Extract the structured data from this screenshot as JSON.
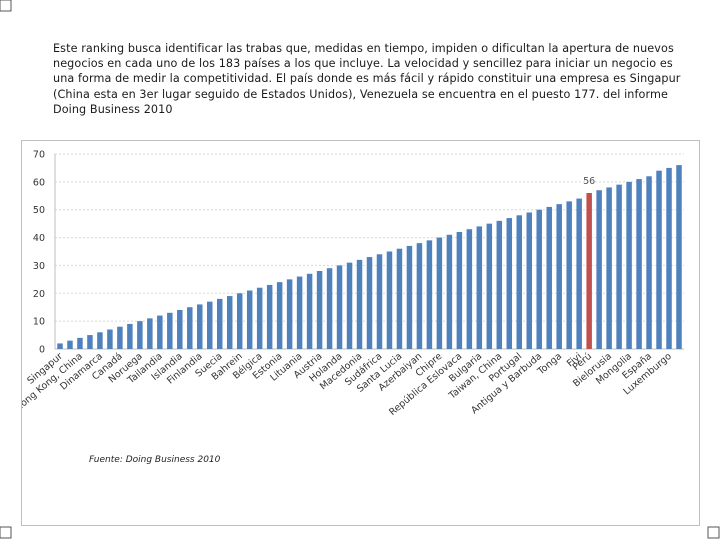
{
  "intro_text": "Este ranking busca identificar las trabas que, medidas en tiempo, impiden o dificultan la apertura de nuevos negocios en cada uno de los 183 países a los que incluye. La velocidad y sencillez para iniciar un negocio es una forma de medir la competitividad. El país donde es más fácil y rápido constituir una empresa es Singapur (China esta en 3er lugar seguido de Estados Unidos), Venezuela se encuentra en el puesto 177. del informe Doing Business 2010",
  "source_text": "Fuente: Doing Business 2010",
  "colors": {
    "bar": "#4f81bd",
    "highlight": "#c0504d",
    "grid": "#d9d9d9",
    "axis_text": "#333333"
  },
  "chart_data": {
    "type": "bar",
    "title": "",
    "xlabel": "",
    "ylabel": "",
    "ylim": [
      0,
      70
    ],
    "yticks": [
      0,
      10,
      20,
      30,
      40,
      50,
      60,
      70
    ],
    "grid": true,
    "legend": "none",
    "highlight_index": 53,
    "highlight_label": "56",
    "categories": [
      "Singapur",
      "",
      "Hong Kong, China",
      "",
      "Dinamarca",
      "",
      "Canadá",
      "",
      "Noruega",
      "",
      "Tailandia",
      "",
      "Islandia",
      "",
      "Finlandia",
      "",
      "Suecia",
      "",
      "Bahrein",
      "",
      "Bélgica",
      "",
      "Estonia",
      "",
      "Lituania",
      "",
      "Austria",
      "",
      "Holanda",
      "",
      "Macedonia",
      "",
      "Sudáfrica",
      "",
      "Santa Lucia",
      "",
      "Azerbaiyan",
      "",
      "Chipre",
      "",
      "República Eslovaca",
      "",
      "Bulgaria",
      "",
      "Taiwan, China",
      "",
      "Portugal",
      "",
      "Antigua y Barbuda",
      "",
      "Tonga",
      "",
      "Fiyi",
      "Perú",
      "",
      "Bielorusia",
      "",
      "Mongolia",
      "",
      "España",
      "",
      "Luxemburgo",
      ""
    ],
    "values": [
      2,
      3,
      4,
      5,
      6,
      7,
      8,
      9,
      10,
      11,
      12,
      13,
      14,
      15,
      16,
      17,
      18,
      19,
      20,
      21,
      22,
      23,
      24,
      25,
      26,
      27,
      28,
      29,
      30,
      31,
      32,
      33,
      34,
      35,
      36,
      37,
      38,
      39,
      40,
      41,
      42,
      43,
      44,
      45,
      46,
      47,
      48,
      49,
      50,
      51,
      52,
      53,
      54,
      56,
      57,
      58,
      59,
      60,
      61,
      62,
      64,
      65,
      66
    ]
  }
}
